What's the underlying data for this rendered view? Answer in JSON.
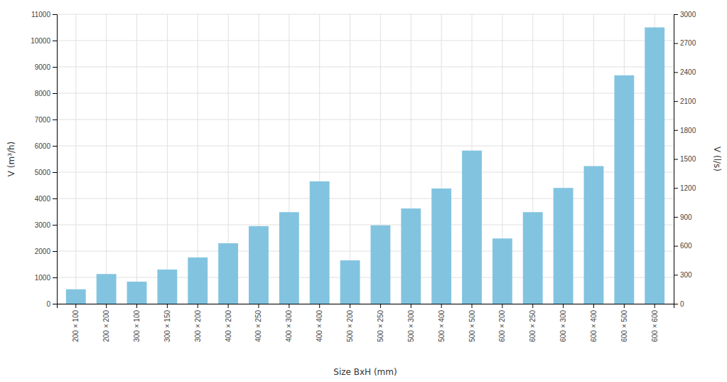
{
  "chart_data": {
    "type": "bar",
    "categories": [
      "200 × 100",
      "200 × 200",
      "300 × 100",
      "300 × 150",
      "300 × 200",
      "400 × 200",
      "400 × 250",
      "400 × 300",
      "400 × 400",
      "500 × 200",
      "500 × 250",
      "500 × 300",
      "500 × 400",
      "500 × 500",
      "600 × 200",
      "600 × 250",
      "600 × 300",
      "600 × 400",
      "600 × 500",
      "600 × 600"
    ],
    "values": [
      550,
      1130,
      840,
      1300,
      1760,
      2300,
      2950,
      3480,
      4650,
      1650,
      2980,
      3620,
      4380,
      5820,
      2480,
      3480,
      4400,
      5230,
      8680,
      10500
    ],
    "color": "#82c4e0",
    "xlabel": "Size BxH (mm)",
    "ylabel": "V (m³/h)",
    "y2label": "V (l/s)",
    "ylim": [
      0,
      11000
    ],
    "yticks": [
      0,
      1000,
      2000,
      3000,
      4000,
      5000,
      6000,
      7000,
      8000,
      9000,
      10000,
      11000
    ],
    "y2lim": [
      0,
      3000
    ],
    "y2ticks": [
      0,
      300,
      600,
      900,
      1200,
      1500,
      1800,
      2100,
      2400,
      2700,
      3000
    ],
    "grid": true
  }
}
